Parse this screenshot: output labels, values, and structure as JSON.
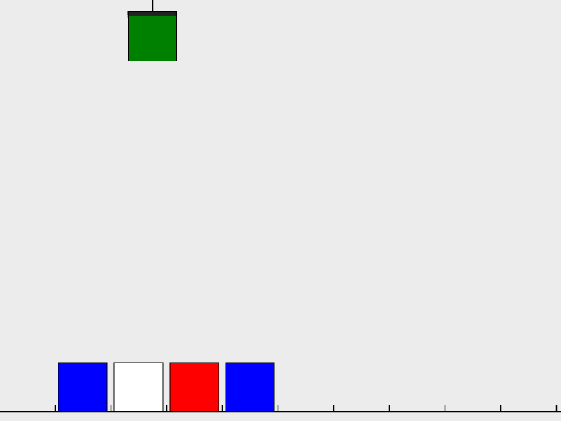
{
  "game": {
    "type": "block-stacking",
    "colors": {
      "background": "#ececec",
      "outline": "#000000",
      "ground": "#000000"
    },
    "crane": {
      "holding": "green-block"
    },
    "held_block": {
      "color": "#008000",
      "color_name": "green"
    },
    "ground_slots": 10,
    "blocks_on_ground": [
      {
        "color": "#0000ff",
        "color_name": "blue",
        "slot": 1
      },
      {
        "color": "#ffffff",
        "color_name": "white",
        "slot": 2
      },
      {
        "color": "#ff0000",
        "color_name": "red",
        "slot": 3
      },
      {
        "color": "#0000ff",
        "color_name": "blue",
        "slot": 4
      }
    ]
  }
}
